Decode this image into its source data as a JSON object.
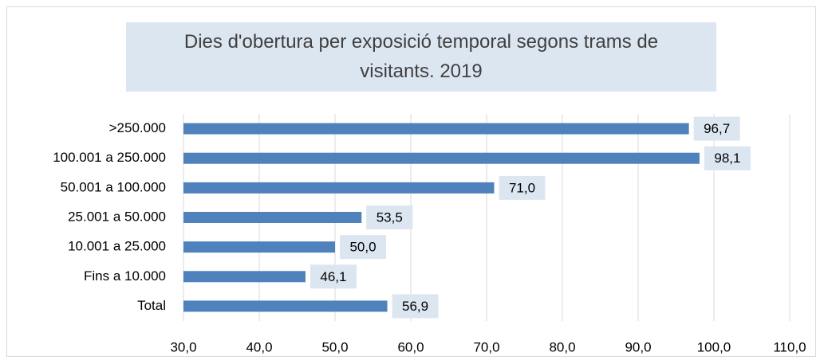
{
  "chart_data": {
    "type": "hbar",
    "title": "Dies d'obertura per exposició temporal segons trams de visitants. 2019",
    "categories": [
      ">250.000",
      "100.001 a 250.000",
      "50.001 a 100.000",
      "25.001 a 50.000",
      "10.001 a 25.000",
      "Fins a 10.000",
      "Total"
    ],
    "values": [
      96.7,
      98.1,
      71.0,
      53.5,
      50.0,
      46.1,
      56.9
    ],
    "value_labels": [
      "96,7",
      "98,1",
      "71,0",
      "53,5",
      "50,0",
      "46,1",
      "56,9"
    ],
    "color": "#4f81bd",
    "xlim": [
      30,
      110
    ],
    "xticks": [
      {
        "value": 30,
        "label": "30,0"
      },
      {
        "value": 40,
        "label": "40,0"
      },
      {
        "value": 50,
        "label": "50,0"
      },
      {
        "value": 60,
        "label": "60,0"
      },
      {
        "value": 70,
        "label": "70,0"
      },
      {
        "value": 80,
        "label": "80,0"
      },
      {
        "value": 90,
        "label": "90,0"
      },
      {
        "value": 100,
        "label": "100,0"
      },
      {
        "value": 110,
        "label": "110,0"
      }
    ],
    "grid": true
  }
}
